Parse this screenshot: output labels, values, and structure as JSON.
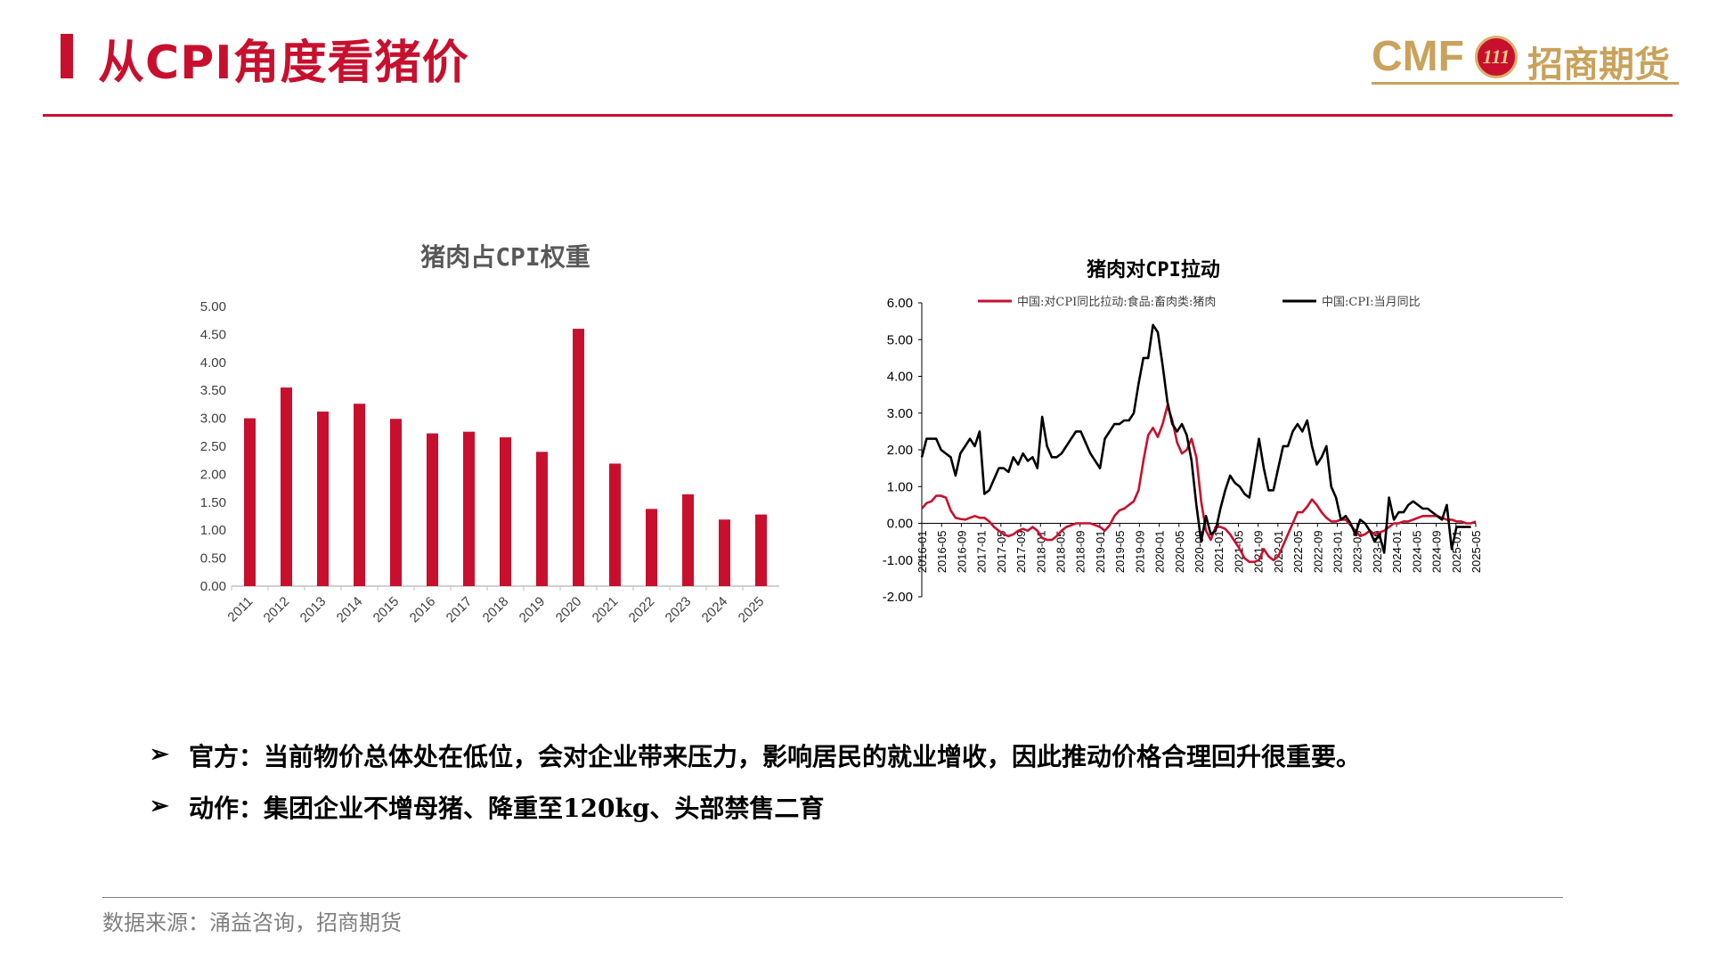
{
  "header": {
    "title": "从CPI角度看猪价",
    "logo": {
      "cmf": "CMF",
      "badge": "111",
      "cn": "招商期货"
    }
  },
  "colors": {
    "accent": "#c8102e",
    "gold": "#c9a25b",
    "series_black": "#000000",
    "axis": "#7f7f7f"
  },
  "chart_data": [
    {
      "type": "bar",
      "title": "猪肉占CPI权重",
      "categories": [
        "2011",
        "2012",
        "2013",
        "2014",
        "2015",
        "2016",
        "2017",
        "2018",
        "2019",
        "2020",
        "2021",
        "2022",
        "2023",
        "2024",
        "2025"
      ],
      "values": [
        3.0,
        3.55,
        3.12,
        3.26,
        2.99,
        2.73,
        2.76,
        2.66,
        2.4,
        4.6,
        2.19,
        1.38,
        1.64,
        1.19,
        1.28
      ],
      "ylim": [
        0,
        5
      ],
      "yticks": [
        "0.00",
        "0.50",
        "1.00",
        "1.50",
        "2.00",
        "2.50",
        "3.00",
        "3.50",
        "4.00",
        "4.50",
        "5.00"
      ],
      "color": "#c8102e"
    },
    {
      "type": "line",
      "title": "猪肉对CPI拉动",
      "ylim": [
        -2,
        6
      ],
      "yticks": [
        "-2.00",
        "-1.00",
        "0.00",
        "1.00",
        "2.00",
        "3.00",
        "4.00",
        "5.00",
        "6.00"
      ],
      "xticks": [
        "2016-01",
        "2016-05",
        "2016-09",
        "2017-01",
        "2017-05",
        "2017-09",
        "2018-01",
        "2018-05",
        "2018-09",
        "2019-01",
        "2019-05",
        "2019-09",
        "2020-01",
        "2020-05",
        "2020-09",
        "2021-01",
        "2021-05",
        "2021-09",
        "2022-01",
        "2022-05",
        "2022-09",
        "2023-01",
        "2023-05",
        "2023-09",
        "2024-01",
        "2024-05",
        "2024-09",
        "2025-01",
        "2025-05"
      ],
      "series": [
        {
          "name": "中国:对CPI同比拉动:食品:畜肉类:猪肉",
          "color": "#c8102e",
          "values": [
            0.4,
            0.55,
            0.6,
            0.75,
            0.75,
            0.7,
            0.35,
            0.15,
            0.12,
            0.1,
            0.15,
            0.2,
            0.15,
            0.15,
            0.05,
            -0.1,
            -0.2,
            -0.3,
            -0.35,
            -0.3,
            -0.2,
            -0.15,
            -0.2,
            -0.1,
            -0.2,
            -0.4,
            -0.45,
            -0.45,
            -0.35,
            -0.2,
            -0.1,
            -0.05,
            0.0,
            0.0,
            0.0,
            0.0,
            -0.05,
            -0.1,
            -0.2,
            -0.05,
            0.2,
            0.35,
            0.4,
            0.5,
            0.6,
            0.9,
            1.7,
            2.4,
            2.6,
            2.35,
            2.7,
            3.2,
            2.8,
            2.2,
            1.9,
            2.0,
            2.3,
            1.8,
            0.6,
            -0.2,
            -0.45,
            -0.1,
            -0.1,
            -0.15,
            -0.3,
            -0.5,
            -0.7,
            -0.95,
            -1.05,
            -1.05,
            -1.0,
            -0.7,
            -0.9,
            -1.0,
            -0.9,
            -0.6,
            -0.3,
            0.0,
            0.3,
            0.3,
            0.45,
            0.65,
            0.5,
            0.3,
            0.15,
            0.05,
            0.05,
            0.1,
            0.1,
            -0.05,
            -0.2,
            -0.35,
            -0.3,
            -0.2,
            -0.3,
            -0.25,
            -0.2,
            -0.1,
            0.0,
            0.0,
            0.05,
            0.05,
            0.1,
            0.15,
            0.2,
            0.2,
            0.2,
            0.2,
            0.15,
            0.1,
            0.1,
            0.05,
            0.05,
            0.0,
            0.0,
            0.05
          ]
        },
        {
          "name": "中国:CPI:当月同比",
          "color": "#000000",
          "values": [
            1.8,
            2.3,
            2.3,
            2.3,
            2.0,
            1.9,
            1.8,
            1.3,
            1.9,
            2.1,
            2.3,
            2.1,
            2.5,
            0.8,
            0.9,
            1.2,
            1.5,
            1.5,
            1.4,
            1.8,
            1.6,
            1.9,
            1.7,
            1.8,
            1.5,
            2.9,
            2.1,
            1.8,
            1.8,
            1.9,
            2.1,
            2.3,
            2.5,
            2.5,
            2.2,
            1.9,
            1.7,
            1.5,
            2.3,
            2.5,
            2.7,
            2.7,
            2.8,
            2.8,
            3.0,
            3.8,
            4.5,
            4.5,
            5.4,
            5.2,
            4.3,
            3.3,
            2.7,
            2.5,
            2.7,
            2.4,
            1.7,
            0.5,
            -0.5,
            0.2,
            -0.3,
            -0.2,
            0.4,
            0.9,
            1.3,
            1.1,
            1.0,
            0.8,
            0.7,
            1.5,
            2.3,
            1.5,
            0.9,
            0.9,
            1.5,
            2.1,
            2.1,
            2.5,
            2.7,
            2.5,
            2.8,
            2.1,
            1.6,
            1.8,
            2.1,
            1.0,
            0.7,
            0.1,
            0.2,
            0.0,
            -0.3,
            0.1,
            0.0,
            -0.2,
            -0.5,
            -0.3,
            -0.8,
            0.7,
            0.1,
            0.3,
            0.3,
            0.5,
            0.6,
            0.5,
            0.4,
            0.4,
            0.3,
            0.2,
            0.1,
            0.5,
            -0.7,
            -0.1,
            -0.1,
            -0.1,
            -0.1
          ]
        }
      ]
    }
  ],
  "bullets": [
    {
      "arrow": "➢",
      "text": "官方：当前物价总体处在低位，会对企业带来压力，影响居民的就业增收，因此推动价格合理回升很重要。"
    },
    {
      "arrow": "➢",
      "text": "动作：集团企业不增母猪、降重至120kg、头部禁售二育"
    }
  ],
  "source": "数据来源：涌益咨询，招商期货"
}
